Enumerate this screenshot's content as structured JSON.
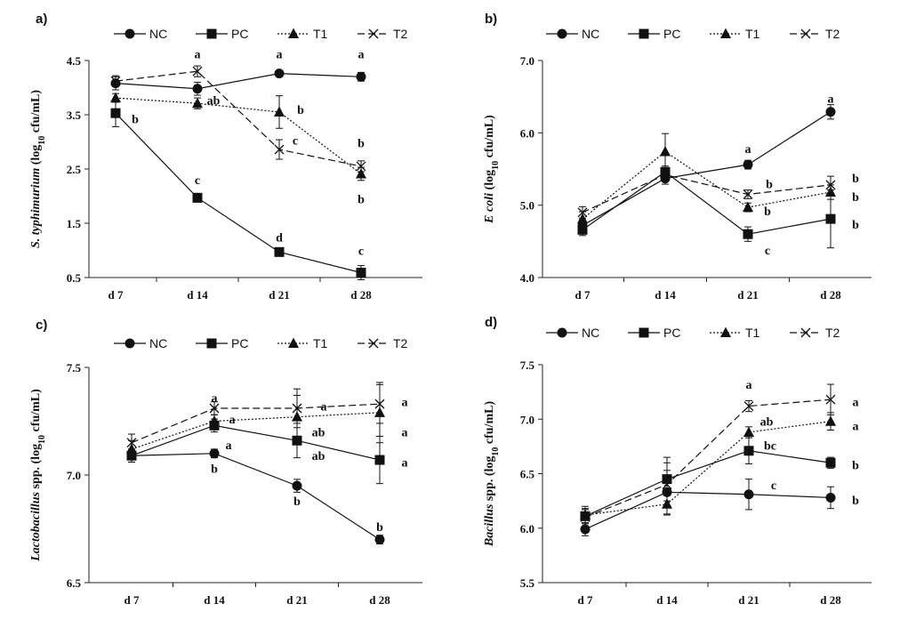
{
  "chart_data": [
    {
      "type": "line",
      "panel": "a)",
      "categories": [
        "d 7",
        "d 14",
        "d 21",
        "d 28"
      ],
      "ylim": [
        0.5,
        4.5
      ],
      "yticks": [
        "0.5",
        "1.5",
        "2.5",
        "3.5",
        "4.5"
      ],
      "ylabel_parts": [
        {
          "t": "S. typhimurium",
          "i": true
        },
        {
          "t": " (log",
          "i": false
        },
        {
          "t": "10",
          "sub": true
        },
        {
          "t": " cfu/mL)",
          "i": false
        }
      ],
      "legend": [
        "NC",
        "PC",
        "T1",
        "T2"
      ],
      "series": [
        {
          "name": "NC",
          "values": [
            4.08,
            3.98,
            4.26,
            4.2
          ],
          "err": [
            0.12,
            0.12,
            0.05,
            0.08
          ]
        },
        {
          "name": "PC",
          "values": [
            3.53,
            1.97,
            0.97,
            0.59
          ],
          "err": [
            0.25,
            0.08,
            0.06,
            0.13
          ]
        },
        {
          "name": "T1",
          "values": [
            3.81,
            3.71,
            3.55,
            2.41
          ],
          "err": [
            0.08,
            0.1,
            0.3,
            0.12
          ]
        },
        {
          "name": "T2",
          "values": [
            4.12,
            4.3,
            2.86,
            2.55
          ],
          "err": [
            0.1,
            0.1,
            0.18,
            0.1
          ]
        }
      ],
      "annotations": [
        {
          "text": "a",
          "cat": 1,
          "y": 4.62,
          "dx": 0
        },
        {
          "text": "ab",
          "cat": 1,
          "y": 3.77,
          "dx": 18
        },
        {
          "text": "b",
          "cat": 0,
          "y": 3.43,
          "dx": 22
        },
        {
          "text": "c",
          "cat": 1,
          "y": 2.3,
          "dx": 0
        },
        {
          "text": "a",
          "cat": 2,
          "y": 4.62,
          "dx": 0
        },
        {
          "text": "b",
          "cat": 2,
          "y": 3.6,
          "dx": 24
        },
        {
          "text": "c",
          "cat": 2,
          "y": 3.03,
          "dx": 18
        },
        {
          "text": "d",
          "cat": 2,
          "y": 1.25,
          "dx": 0
        },
        {
          "text": "a",
          "cat": 3,
          "y": 4.62,
          "dx": 0
        },
        {
          "text": "b",
          "cat": 3,
          "y": 2.98,
          "dx": 0
        },
        {
          "text": "b",
          "cat": 3,
          "y": 1.95,
          "dx": 0
        },
        {
          "text": "c",
          "cat": 3,
          "y": 1.0,
          "dx": 0
        }
      ]
    },
    {
      "type": "line",
      "panel": "b)",
      "categories": [
        "d 7",
        "d 14",
        "d 21",
        "d 28"
      ],
      "ylim": [
        4.0,
        7.0
      ],
      "yticks": [
        "4.0",
        "5.0",
        "6.0",
        "7.0"
      ],
      "ylabel_parts": [
        {
          "t": "E coli",
          "i": true
        },
        {
          "t": " (log",
          "i": false
        },
        {
          "t": "10",
          "sub": true
        },
        {
          "t": " cfu/mL)",
          "i": false
        }
      ],
      "legend": [
        "NC",
        "PC",
        "T1",
        "T2"
      ],
      "series": [
        {
          "name": "NC",
          "values": [
            4.72,
            5.37,
            5.56,
            6.29
          ],
          "err": [
            0.08,
            0.08,
            0.06,
            0.1
          ]
        },
        {
          "name": "PC",
          "values": [
            4.66,
            5.46,
            4.6,
            4.81
          ],
          "err": [
            0.08,
            0.08,
            0.1,
            0.4
          ]
        },
        {
          "name": "T1",
          "values": [
            4.81,
            5.74,
            4.97,
            5.18
          ],
          "err": [
            0.1,
            0.25,
            0.06,
            0.1
          ]
        },
        {
          "name": "T2",
          "values": [
            4.9,
            5.42,
            5.15,
            5.28
          ],
          "err": [
            0.08,
            0.08,
            0.06,
            0.12
          ]
        }
      ],
      "annotations": [
        {
          "text": "a",
          "cat": 2,
          "y": 5.78,
          "dx": 0
        },
        {
          "text": "b",
          "cat": 2,
          "y": 5.3,
          "dx": 24
        },
        {
          "text": "b",
          "cat": 2,
          "y": 4.92,
          "dx": 22
        },
        {
          "text": "c",
          "cat": 2,
          "y": 4.38,
          "dx": 22
        },
        {
          "text": "a",
          "cat": 3,
          "y": 6.48,
          "dx": 0
        },
        {
          "text": "b",
          "cat": 3,
          "y": 5.38,
          "dx": 28
        },
        {
          "text": "b",
          "cat": 3,
          "y": 5.12,
          "dx": 28
        },
        {
          "text": "b",
          "cat": 3,
          "y": 4.74,
          "dx": 28
        }
      ]
    },
    {
      "type": "line",
      "panel": "c)",
      "categories": [
        "d 7",
        "d 14",
        "d 21",
        "d 28"
      ],
      "ylim": [
        6.5,
        7.5
      ],
      "yticks": [
        "6.5",
        "7.0",
        "7.5"
      ],
      "ylabel_parts": [
        {
          "t": "Lactobacillus",
          "i": true
        },
        {
          "t": " spp. (log",
          "i": false
        },
        {
          "t": "10",
          "sub": true
        },
        {
          "t": " cfu/mL)",
          "i": false
        }
      ],
      "legend": [
        "NC",
        "PC",
        "T1",
        "T2"
      ],
      "series": [
        {
          "name": "NC",
          "values": [
            7.09,
            7.1,
            6.95,
            6.7
          ],
          "err": [
            0.03,
            0.02,
            0.03,
            0.02
          ]
        },
        {
          "name": "PC",
          "values": [
            7.09,
            7.23,
            7.16,
            7.07
          ],
          "err": [
            0.03,
            0.03,
            0.08,
            0.11
          ]
        },
        {
          "name": "T1",
          "values": [
            7.12,
            7.25,
            7.27,
            7.29
          ],
          "err": [
            0.04,
            0.03,
            0.1,
            0.14
          ]
        },
        {
          "name": "T2",
          "values": [
            7.15,
            7.31,
            7.31,
            7.33
          ],
          "err": [
            0.04,
            0.03,
            0.09,
            0.09
          ]
        }
      ],
      "annotations": [
        {
          "text": "a",
          "cat": 1,
          "y": 7.36,
          "dx": 0
        },
        {
          "text": "a",
          "cat": 1,
          "y": 7.26,
          "dx": 20
        },
        {
          "text": "a",
          "cat": 1,
          "y": 7.14,
          "dx": 16
        },
        {
          "text": "b",
          "cat": 1,
          "y": 7.03,
          "dx": 0
        },
        {
          "text": "a",
          "cat": 2,
          "y": 7.32,
          "dx": 30
        },
        {
          "text": "ab",
          "cat": 2,
          "y": 7.2,
          "dx": 24
        },
        {
          "text": "ab",
          "cat": 2,
          "y": 7.09,
          "dx": 24
        },
        {
          "text": "b",
          "cat": 2,
          "y": 6.88,
          "dx": 0
        },
        {
          "text": "a",
          "cat": 3,
          "y": 7.34,
          "dx": 28
        },
        {
          "text": "a",
          "cat": 3,
          "y": 7.2,
          "dx": 28
        },
        {
          "text": "a",
          "cat": 3,
          "y": 7.06,
          "dx": 28
        },
        {
          "text": "b",
          "cat": 3,
          "y": 6.76,
          "dx": 0
        }
      ]
    },
    {
      "type": "line",
      "panel": "d)",
      "categories": [
        "d 7",
        "d 14",
        "d 21",
        "d 28"
      ],
      "ylim": [
        5.5,
        7.5
      ],
      "yticks": [
        "5.5",
        "6.0",
        "6.5",
        "7.0",
        "7.5"
      ],
      "ylabel_parts": [
        {
          "t": "Bacillus",
          "i": true
        },
        {
          "t": " spp. (log",
          "i": false
        },
        {
          "t": "10",
          "sub": true
        },
        {
          "t": " cfu/mL)",
          "i": false
        }
      ],
      "legend": [
        "NC",
        "PC",
        "T1",
        "T2"
      ],
      "series": [
        {
          "name": "NC",
          "values": [
            5.99,
            6.33,
            6.31,
            6.28
          ],
          "err": [
            0.06,
            0.2,
            0.14,
            0.1
          ]
        },
        {
          "name": "PC",
          "values": [
            6.11,
            6.45,
            6.71,
            6.6
          ],
          "err": [
            0.06,
            0.2,
            0.12,
            0.05
          ]
        },
        {
          "name": "T1",
          "values": [
            6.12,
            6.22,
            6.88,
            6.98
          ],
          "err": [
            0.08,
            0.1,
            0.05,
            0.08
          ]
        },
        {
          "name": "T2",
          "values": [
            6.1,
            6.4,
            7.12,
            7.18
          ],
          "err": [
            0.08,
            0.2,
            0.05,
            0.14
          ]
        }
      ],
      "annotations": [
        {
          "text": "a",
          "cat": 2,
          "y": 7.32,
          "dx": 0
        },
        {
          "text": "ab",
          "cat": 2,
          "y": 6.98,
          "dx": 20
        },
        {
          "text": "bc",
          "cat": 2,
          "y": 6.76,
          "dx": 24
        },
        {
          "text": "c",
          "cat": 2,
          "y": 6.4,
          "dx": 28
        },
        {
          "text": "a",
          "cat": 3,
          "y": 7.16,
          "dx": 28
        },
        {
          "text": "a",
          "cat": 3,
          "y": 6.94,
          "dx": 28
        },
        {
          "text": "b",
          "cat": 3,
          "y": 6.58,
          "dx": 28
        },
        {
          "text": "b",
          "cat": 3,
          "y": 6.26,
          "dx": 28
        }
      ]
    }
  ]
}
